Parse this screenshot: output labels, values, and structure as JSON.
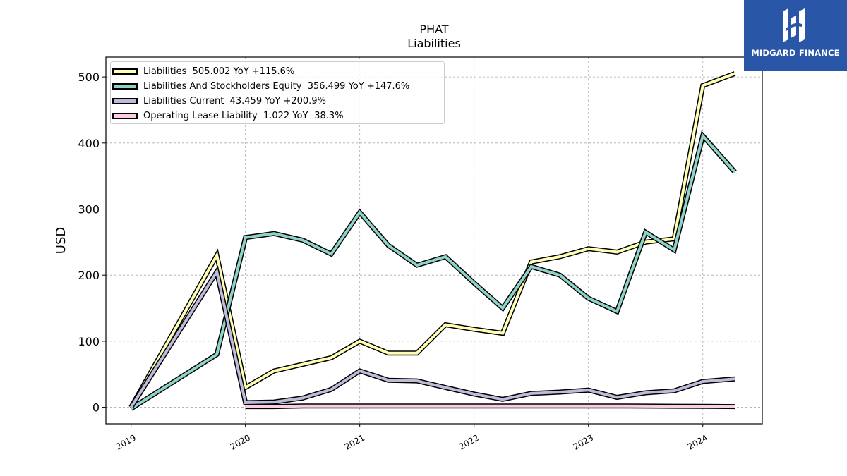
{
  "chart_data": {
    "type": "line",
    "title": "PHAT",
    "subtitle": "Liabilities",
    "ylabel": "USD",
    "xlabel": "",
    "ylim": [
      -25,
      530
    ],
    "xlim": [
      2018.78,
      2024.52
    ],
    "grid": true,
    "legend_position": "top-left",
    "x_ticks": [
      "2019",
      "2020",
      "2021",
      "2022",
      "2023",
      "2024"
    ],
    "y_ticks": [
      "0",
      "100",
      "200",
      "300",
      "400",
      "500"
    ],
    "series": [
      {
        "name": "Liabilities",
        "label": "Liabilities  505.002 YoY +115.6%",
        "color": "#ffffb3",
        "x": [
          2019.0,
          2019.75,
          2020.0,
          2020.25,
          2020.5,
          2020.75,
          2021.0,
          2021.25,
          2021.5,
          2021.75,
          2022.0,
          2022.25,
          2022.5,
          2022.75,
          2023.0,
          2023.25,
          2023.5,
          2023.75,
          2024.0,
          2024.28
        ],
        "y": [
          0,
          230,
          30,
          55,
          65,
          75,
          100,
          82,
          82,
          125,
          118,
          112,
          220,
          228,
          240,
          235,
          250,
          255,
          487,
          505
        ]
      },
      {
        "name": "Liabilities And Stockholders Equity",
        "label": "Liabilities And Stockholders Equity  356.499 YoY +147.6%",
        "color": "#8dd3c7",
        "x": [
          2019.0,
          2019.75,
          2020.0,
          2020.25,
          2020.5,
          2020.75,
          2021.0,
          2021.25,
          2021.5,
          2021.75,
          2022.0,
          2022.25,
          2022.5,
          2022.75,
          2023.0,
          2023.25,
          2023.5,
          2023.75,
          2024.0,
          2024.28
        ],
        "y": [
          -2,
          80,
          257,
          263,
          253,
          232,
          295,
          245,
          215,
          228,
          188,
          150,
          213,
          200,
          165,
          145,
          265,
          238,
          411,
          356
        ]
      },
      {
        "name": "Liabilities Current",
        "label": "Liabilities Current  43.459 YoY +200.9%",
        "color": "#bebada",
        "x": [
          2019.0,
          2019.75,
          2020.0,
          2020.25,
          2020.5,
          2020.75,
          2021.0,
          2021.25,
          2021.5,
          2021.75,
          2022.0,
          2022.25,
          2022.5,
          2022.75,
          2023.0,
          2023.25,
          2023.5,
          2023.75,
          2024.0,
          2024.28
        ],
        "y": [
          0,
          205,
          7,
          8,
          14,
          27,
          55,
          41,
          40,
          30,
          20,
          12,
          21,
          23,
          26,
          15,
          22,
          25,
          39,
          43
        ]
      },
      {
        "name": "Operating Lease Liability",
        "label": "Operating Lease Liability  1.022 YoY -38.3%",
        "color": "#fccde5",
        "x": [
          2020.0,
          2020.25,
          2020.5,
          2020.75,
          2021.0,
          2021.25,
          2021.5,
          2021.75,
          2022.0,
          2022.25,
          2022.5,
          2022.75,
          2023.0,
          2023.25,
          2023.5,
          2023.75,
          2024.0,
          2024.28
        ],
        "y": [
          1,
          1,
          2,
          2,
          2,
          2,
          2,
          2,
          2,
          2,
          2,
          2,
          2,
          2,
          1.8,
          1.6,
          1.5,
          1.022
        ]
      }
    ]
  },
  "logo": {
    "text": "MIDGARD FINANCE"
  }
}
